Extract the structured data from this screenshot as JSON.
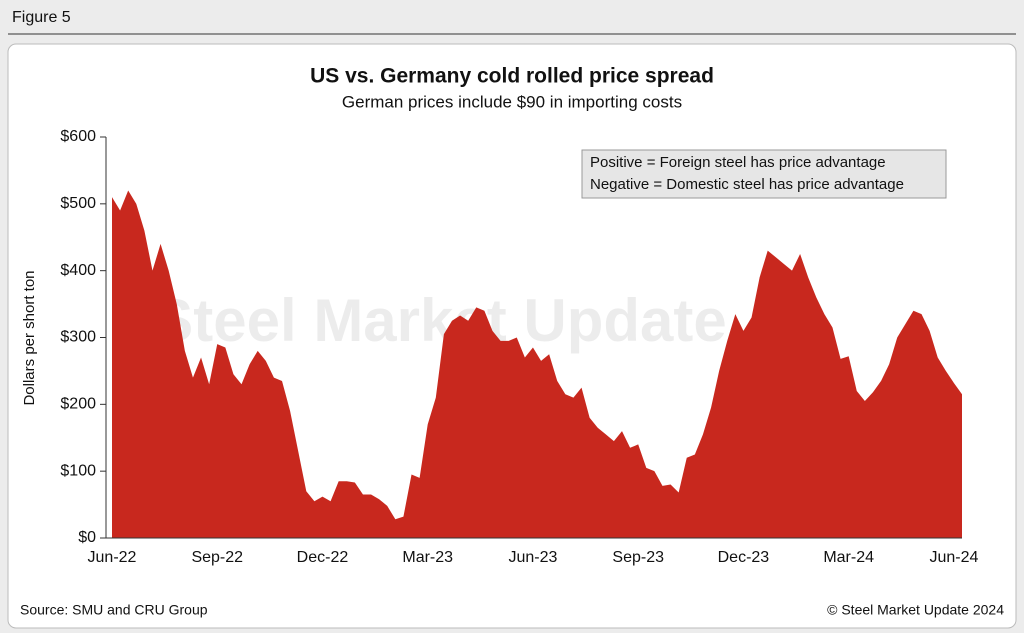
{
  "figure_label": "Figure 5",
  "chart_data": {
    "type": "area",
    "title": "US vs. Germany cold rolled price spread",
    "subtitle": "German prices include $90 in importing costs",
    "y_label": "Dollars per short ton",
    "annotations": [
      "Positive = Foreign steel has price advantage",
      "Negative = Domestic steel has price advantage"
    ],
    "watermark": "Steel Market Update",
    "color": "#c8281e",
    "categories": [
      "Jun-22",
      null,
      null,
      null,
      null,
      null,
      null,
      null,
      null,
      null,
      null,
      null,
      null,
      "Sep-22",
      null,
      null,
      null,
      null,
      null,
      null,
      null,
      null,
      null,
      null,
      null,
      null,
      "Dec-22",
      null,
      null,
      null,
      null,
      null,
      null,
      null,
      null,
      null,
      null,
      null,
      null,
      "Mar-23",
      null,
      null,
      null,
      null,
      null,
      null,
      null,
      null,
      null,
      null,
      null,
      null,
      "Jun-23",
      null,
      null,
      null,
      null,
      null,
      null,
      null,
      null,
      null,
      null,
      null,
      null,
      "Sep-23",
      null,
      null,
      null,
      null,
      null,
      null,
      null,
      null,
      null,
      null,
      null,
      null,
      "Dec-23",
      null,
      null,
      null,
      null,
      null,
      null,
      null,
      null,
      null,
      null,
      null,
      null,
      "Mar-24",
      null,
      null,
      null,
      null,
      null,
      null,
      null,
      null,
      null,
      null,
      null,
      null,
      "Jun-24",
      null
    ],
    "values": [
      510,
      490,
      520,
      500,
      460,
      400,
      440,
      400,
      350,
      280,
      240,
      270,
      230,
      290,
      285,
      245,
      230,
      260,
      280,
      265,
      240,
      235,
      190,
      130,
      70,
      55,
      62,
      55,
      85,
      85,
      83,
      65,
      65,
      58,
      48,
      28,
      32,
      95,
      90,
      170,
      210,
      305,
      325,
      333,
      325,
      345,
      340,
      310,
      295,
      295,
      300,
      270,
      285,
      265,
      275,
      235,
      215,
      210,
      225,
      180,
      165,
      155,
      145,
      160,
      135,
      140,
      105,
      100,
      78,
      80,
      68,
      120,
      125,
      155,
      195,
      250,
      295,
      335,
      310,
      330,
      390,
      430,
      420,
      410,
      400,
      425,
      390,
      360,
      335,
      315,
      268,
      272,
      220,
      205,
      218,
      235,
      260,
      300,
      320,
      340,
      335,
      310,
      270,
      250,
      232,
      215
    ],
    "ylim": [
      0,
      600
    ],
    "yticks": [
      {
        "value": 0,
        "label": "$0"
      },
      {
        "value": 100,
        "label": "$100"
      },
      {
        "value": 200,
        "label": "$200"
      },
      {
        "value": 300,
        "label": "$300"
      },
      {
        "value": 400,
        "label": "$400"
      },
      {
        "value": 500,
        "label": "$500"
      },
      {
        "value": 600,
        "label": "$600"
      }
    ]
  },
  "footer": {
    "source": "Source: SMU and CRU Group",
    "copyright": "© Steel Market Update 2024"
  }
}
